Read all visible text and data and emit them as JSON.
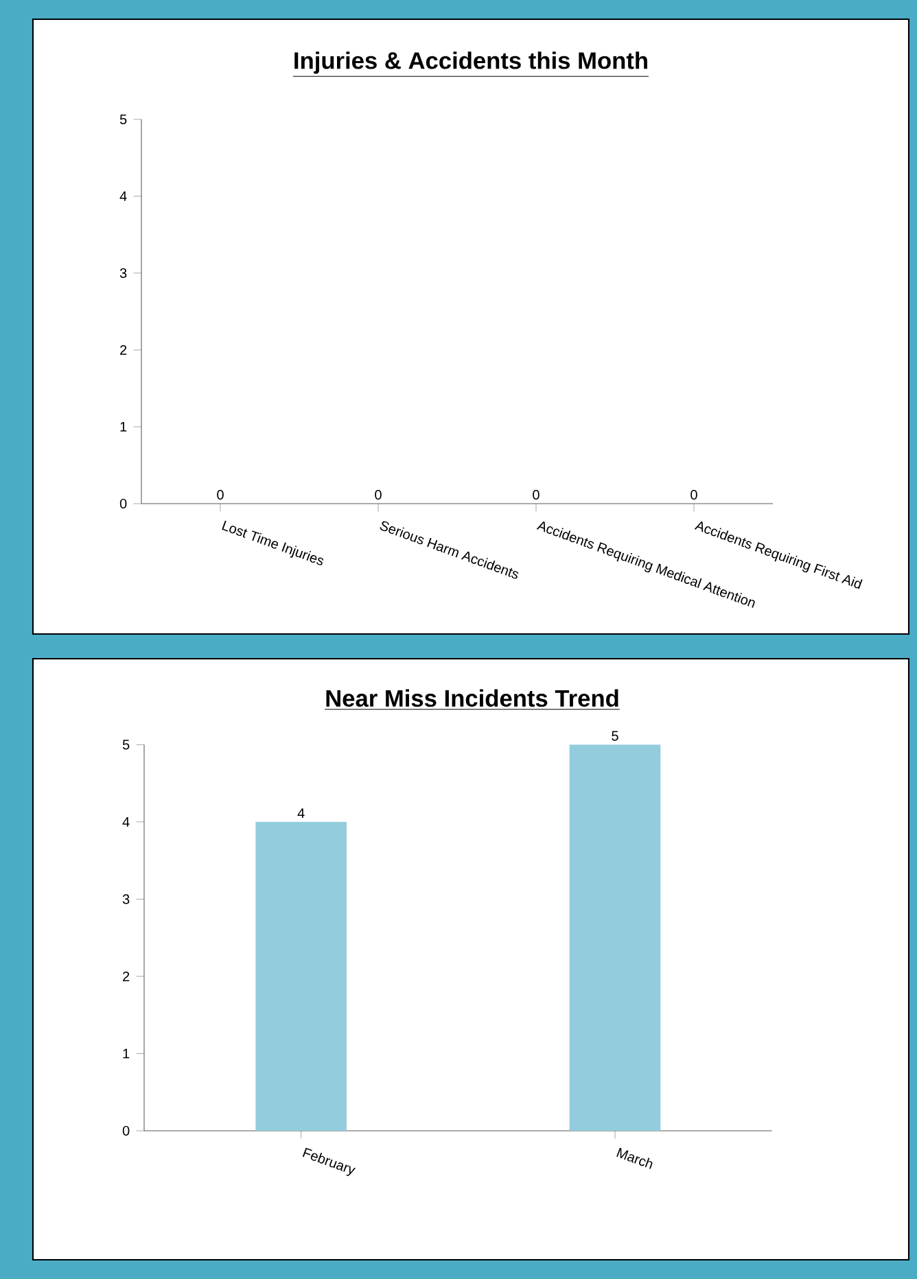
{
  "chart_data": [
    {
      "type": "bar",
      "title": "**Injuries & Accidents this Month**",
      "categories": [
        "Lost Time Injuries",
        "Serious Harm Accidents",
        "Accidents Requiring Medical Attention",
        "Accidents Requiring First Aid"
      ],
      "values": [
        0,
        0,
        0,
        0
      ],
      "color": "#93cddd",
      "ylim": [
        0,
        5
      ],
      "yticks": [
        0,
        1,
        2,
        3,
        4,
        5
      ],
      "data_labels": true
    },
    {
      "type": "bar",
      "title": "**Near Miss Incidents Trend**",
      "categories": [
        "February",
        "March"
      ],
      "values": [
        4,
        5
      ],
      "color": "#93cddd",
      "ylim": [
        0,
        5
      ],
      "yticks": [
        0,
        1,
        2,
        3,
        4,
        5
      ],
      "data_labels": true
    }
  ]
}
